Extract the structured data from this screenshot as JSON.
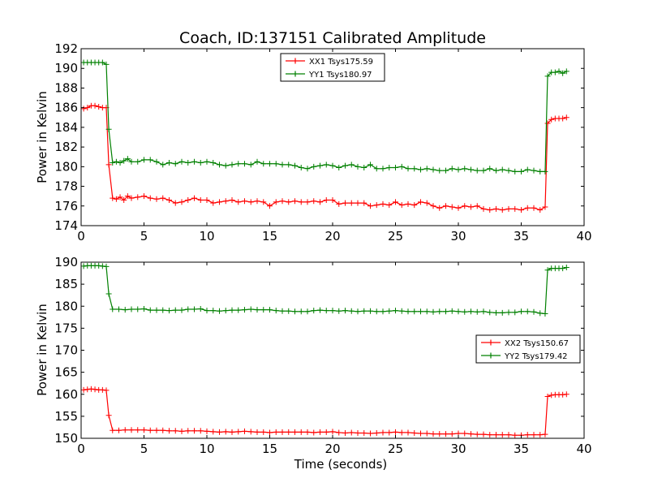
{
  "chart_data": [
    {
      "type": "line",
      "title": "Coach, ID:137151 Calibrated Amplitude",
      "xlabel": "",
      "ylabel": "Power in Kelvin",
      "xlim": [
        0,
        40
      ],
      "ylim": [
        174,
        192
      ],
      "xticks": [
        0,
        5,
        10,
        15,
        20,
        25,
        30,
        35,
        40
      ],
      "yticks": [
        174,
        176,
        178,
        180,
        182,
        184,
        186,
        188,
        190,
        192
      ],
      "legend_position": "upper center",
      "series": [
        {
          "name": "XX1 Tsys175.59",
          "color": "#ff0000",
          "x": [
            0.2,
            0.5,
            0.8,
            1.1,
            1.4,
            1.7,
            2.0,
            2.2,
            2.5,
            2.8,
            3.1,
            3.4,
            3.7,
            4.0,
            4.5,
            5.0,
            5.5,
            6.0,
            6.5,
            7.0,
            7.5,
            8.0,
            8.5,
            9.0,
            9.5,
            10.0,
            10.5,
            11.0,
            11.5,
            12.0,
            12.5,
            13.0,
            13.5,
            14.0,
            14.5,
            15.0,
            15.5,
            16.0,
            16.5,
            17.0,
            17.5,
            18.0,
            18.5,
            19.0,
            19.5,
            20.0,
            20.5,
            21.0,
            21.5,
            22.0,
            22.5,
            23.0,
            23.5,
            24.0,
            24.5,
            25.0,
            25.5,
            26.0,
            26.5,
            27.0,
            27.5,
            28.0,
            28.5,
            29.0,
            29.5,
            30.0,
            30.5,
            31.0,
            31.5,
            32.0,
            32.5,
            33.0,
            33.5,
            34.0,
            34.5,
            35.0,
            35.5,
            36.0,
            36.5,
            36.9,
            37.1,
            37.4,
            37.7,
            38.0,
            38.3,
            38.6
          ],
          "values": [
            185.9,
            186.0,
            186.2,
            186.2,
            186.1,
            186.0,
            186.0,
            180.2,
            176.8,
            176.7,
            176.9,
            176.6,
            177.0,
            176.8,
            176.9,
            177.0,
            176.8,
            176.7,
            176.8,
            176.6,
            176.3,
            176.4,
            176.6,
            176.8,
            176.6,
            176.6,
            176.3,
            176.4,
            176.5,
            176.6,
            176.4,
            176.5,
            176.4,
            176.5,
            176.4,
            176.0,
            176.4,
            176.5,
            176.4,
            176.5,
            176.4,
            176.4,
            176.5,
            176.4,
            176.6,
            176.6,
            176.2,
            176.3,
            176.3,
            176.3,
            176.3,
            176.0,
            176.1,
            176.2,
            176.1,
            176.4,
            176.1,
            176.2,
            176.1,
            176.4,
            176.3,
            176.0,
            175.8,
            176.0,
            175.9,
            175.8,
            176.0,
            175.9,
            176.0,
            175.7,
            175.6,
            175.7,
            175.6,
            175.7,
            175.7,
            175.6,
            175.8,
            175.8,
            175.6,
            175.9,
            184.4,
            184.8,
            184.9,
            184.9,
            184.9,
            185.0
          ]
        },
        {
          "name": "YY1 Tsys180.97",
          "color": "#008000",
          "x": [
            0.2,
            0.5,
            0.8,
            1.1,
            1.4,
            1.7,
            2.0,
            2.2,
            2.5,
            2.8,
            3.1,
            3.4,
            3.7,
            4.0,
            4.5,
            5.0,
            5.5,
            6.0,
            6.5,
            7.0,
            7.5,
            8.0,
            8.5,
            9.0,
            9.5,
            10.0,
            10.5,
            11.0,
            11.5,
            12.0,
            12.5,
            13.0,
            13.5,
            14.0,
            14.5,
            15.0,
            15.5,
            16.0,
            16.5,
            17.0,
            17.5,
            18.0,
            18.5,
            19.0,
            19.5,
            20.0,
            20.5,
            21.0,
            21.5,
            22.0,
            22.5,
            23.0,
            23.5,
            24.0,
            24.5,
            25.0,
            25.5,
            26.0,
            26.5,
            27.0,
            27.5,
            28.0,
            28.5,
            29.0,
            29.5,
            30.0,
            30.5,
            31.0,
            31.5,
            32.0,
            32.5,
            33.0,
            33.5,
            34.0,
            34.5,
            35.0,
            35.5,
            36.0,
            36.5,
            36.9,
            37.1,
            37.4,
            37.7,
            38.0,
            38.3,
            38.6
          ],
          "values": [
            190.6,
            190.6,
            190.6,
            190.6,
            190.6,
            190.6,
            190.4,
            183.8,
            180.4,
            180.5,
            180.4,
            180.6,
            180.8,
            180.5,
            180.5,
            180.7,
            180.7,
            180.5,
            180.2,
            180.4,
            180.3,
            180.5,
            180.4,
            180.5,
            180.4,
            180.5,
            180.4,
            180.2,
            180.1,
            180.2,
            180.3,
            180.3,
            180.2,
            180.5,
            180.3,
            180.3,
            180.3,
            180.2,
            180.2,
            180.1,
            179.9,
            179.8,
            180.0,
            180.1,
            180.2,
            180.1,
            179.9,
            180.1,
            180.2,
            180.0,
            179.9,
            180.2,
            179.8,
            179.8,
            179.9,
            179.9,
            180.0,
            179.8,
            179.8,
            179.7,
            179.8,
            179.7,
            179.6,
            179.6,
            179.8,
            179.7,
            179.8,
            179.7,
            179.6,
            179.6,
            179.8,
            179.6,
            179.7,
            179.6,
            179.5,
            179.5,
            179.7,
            179.6,
            179.5,
            179.5,
            189.2,
            189.6,
            189.6,
            189.7,
            189.5,
            189.7
          ]
        }
      ]
    },
    {
      "type": "line",
      "title": "",
      "xlabel": "Time (seconds)",
      "ylabel": "Power in Kelvin",
      "xlim": [
        0,
        40
      ],
      "ylim": [
        150,
        190
      ],
      "xticks": [
        0,
        5,
        10,
        15,
        20,
        25,
        30,
        35,
        40
      ],
      "yticks": [
        150,
        155,
        160,
        165,
        170,
        175,
        180,
        185,
        190
      ],
      "legend_position": "center right",
      "series": [
        {
          "name": "XX2 Tsys150.67",
          "color": "#ff0000",
          "x": [
            0.2,
            0.5,
            0.8,
            1.1,
            1.4,
            1.7,
            2.0,
            2.2,
            2.5,
            3.0,
            3.5,
            4.0,
            4.5,
            5.0,
            5.5,
            6.0,
            6.5,
            7.0,
            7.5,
            8.0,
            8.5,
            9.0,
            9.5,
            10.0,
            10.5,
            11.0,
            11.5,
            12.0,
            12.5,
            13.0,
            13.5,
            14.0,
            14.5,
            15.0,
            15.5,
            16.0,
            16.5,
            17.0,
            17.5,
            18.0,
            18.5,
            19.0,
            19.5,
            20.0,
            20.5,
            21.0,
            21.5,
            22.0,
            22.5,
            23.0,
            23.5,
            24.0,
            24.5,
            25.0,
            25.5,
            26.0,
            26.5,
            27.0,
            27.5,
            28.0,
            28.5,
            29.0,
            29.5,
            30.0,
            30.5,
            31.0,
            31.5,
            32.0,
            32.5,
            33.0,
            33.5,
            34.0,
            34.5,
            35.0,
            35.5,
            36.0,
            36.5,
            36.9,
            37.1,
            37.4,
            37.7,
            38.0,
            38.3,
            38.6
          ],
          "values": [
            161.0,
            161.1,
            161.2,
            161.1,
            161.0,
            161.0,
            160.9,
            155.2,
            151.8,
            151.8,
            151.9,
            151.9,
            151.9,
            151.9,
            151.8,
            151.8,
            151.8,
            151.7,
            151.7,
            151.6,
            151.7,
            151.7,
            151.7,
            151.6,
            151.5,
            151.4,
            151.5,
            151.4,
            151.5,
            151.6,
            151.5,
            151.4,
            151.4,
            151.3,
            151.4,
            151.4,
            151.4,
            151.4,
            151.4,
            151.4,
            151.3,
            151.4,
            151.4,
            151.5,
            151.3,
            151.2,
            151.3,
            151.2,
            151.2,
            151.1,
            151.2,
            151.3,
            151.3,
            151.4,
            151.3,
            151.3,
            151.2,
            151.1,
            151.1,
            151.0,
            151.0,
            151.0,
            151.0,
            151.1,
            151.1,
            151.0,
            150.9,
            150.9,
            150.8,
            150.8,
            150.8,
            150.8,
            150.7,
            150.7,
            150.8,
            150.8,
            150.8,
            150.9,
            159.5,
            159.8,
            159.9,
            159.9,
            159.9,
            160.0
          ]
        },
        {
          "name": "YY2 Tsys179.42",
          "color": "#008000",
          "x": [
            0.2,
            0.5,
            0.8,
            1.1,
            1.4,
            1.7,
            2.0,
            2.2,
            2.5,
            3.0,
            3.5,
            4.0,
            4.5,
            5.0,
            5.5,
            6.0,
            6.5,
            7.0,
            7.5,
            8.0,
            8.5,
            9.0,
            9.5,
            10.0,
            10.5,
            11.0,
            11.5,
            12.0,
            12.5,
            13.0,
            13.5,
            14.0,
            14.5,
            15.0,
            15.5,
            16.0,
            16.5,
            17.0,
            17.5,
            18.0,
            18.5,
            19.0,
            19.5,
            20.0,
            20.5,
            21.0,
            21.5,
            22.0,
            22.5,
            23.0,
            23.5,
            24.0,
            24.5,
            25.0,
            25.5,
            26.0,
            26.5,
            27.0,
            27.5,
            28.0,
            28.5,
            29.0,
            29.5,
            30.0,
            30.5,
            31.0,
            31.5,
            32.0,
            32.5,
            33.0,
            33.5,
            34.0,
            34.5,
            35.0,
            35.5,
            36.0,
            36.5,
            36.9,
            37.1,
            37.4,
            37.7,
            38.0,
            38.3,
            38.6
          ],
          "values": [
            189.1,
            189.2,
            189.2,
            189.2,
            189.2,
            189.1,
            189.0,
            182.8,
            179.3,
            179.3,
            179.2,
            179.3,
            179.3,
            179.4,
            179.1,
            179.1,
            179.1,
            179.0,
            179.1,
            179.1,
            179.3,
            179.3,
            179.4,
            179.0,
            179.0,
            178.9,
            179.0,
            179.1,
            179.1,
            179.2,
            179.3,
            179.2,
            179.2,
            179.2,
            179.0,
            178.9,
            178.9,
            178.8,
            178.8,
            178.8,
            179.0,
            179.1,
            179.0,
            179.0,
            178.9,
            179.0,
            178.9,
            178.8,
            178.9,
            178.9,
            178.8,
            178.8,
            178.9,
            179.0,
            178.9,
            178.8,
            178.8,
            178.8,
            178.8,
            178.7,
            178.8,
            178.8,
            178.9,
            178.8,
            178.7,
            178.8,
            178.7,
            178.8,
            178.6,
            178.5,
            178.5,
            178.6,
            178.6,
            178.8,
            178.8,
            178.7,
            178.4,
            178.3,
            188.2,
            188.6,
            188.6,
            188.6,
            188.6,
            188.8
          ]
        }
      ]
    }
  ]
}
